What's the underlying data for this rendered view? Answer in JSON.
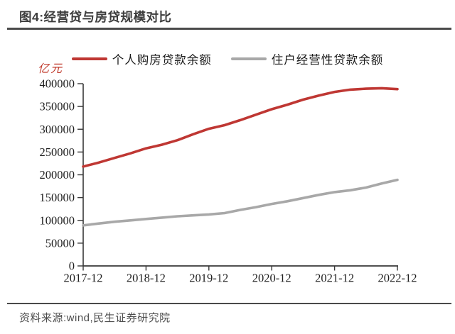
{
  "figure": {
    "title": "图4:经营贷与房贷规模对比",
    "source": "资料来源:wind,民生证券研究院"
  },
  "colors": {
    "red": "#bf3733",
    "gray": "#a8a8a8",
    "axis": "#383838",
    "tick_text": "#1f1f1f",
    "unit_text": "#c0392b",
    "rule": "#4a4a4a"
  },
  "chart_data": {
    "type": "line",
    "unit_label": "亿元",
    "x": [
      "2017-12",
      "2018-03",
      "2018-06",
      "2018-09",
      "2018-12",
      "2019-03",
      "2019-06",
      "2019-09",
      "2019-12",
      "2020-03",
      "2020-06",
      "2020-09",
      "2020-12",
      "2021-03",
      "2021-06",
      "2021-09",
      "2021-12",
      "2022-03",
      "2022-06",
      "2022-09",
      "2022-12"
    ],
    "x_tick_labels": [
      "2017-12",
      "2018-12",
      "2019-12",
      "2020-12",
      "2021-12",
      "2022-12"
    ],
    "y_ticks": [
      0,
      50000,
      100000,
      150000,
      200000,
      250000,
      300000,
      350000,
      400000
    ],
    "ylim": [
      0,
      400000
    ],
    "grid": false,
    "legend_position": "top-center",
    "series": [
      {
        "name": "个人购房贷款余额",
        "color": "#bf3733",
        "values": [
          218000,
          227000,
          237000,
          247000,
          258000,
          266000,
          276000,
          289000,
          301000,
          309000,
          320000,
          332000,
          344000,
          354000,
          365000,
          374000,
          382000,
          387000,
          389000,
          390000,
          388000
        ]
      },
      {
        "name": "住户经营性贷款余额",
        "color": "#a8a8a8",
        "values": [
          89000,
          93000,
          97000,
          100000,
          103000,
          106000,
          109000,
          111000,
          113000,
          116000,
          123000,
          129000,
          136000,
          142000,
          149000,
          156000,
          162000,
          166000,
          172000,
          181000,
          189000
        ]
      }
    ]
  }
}
